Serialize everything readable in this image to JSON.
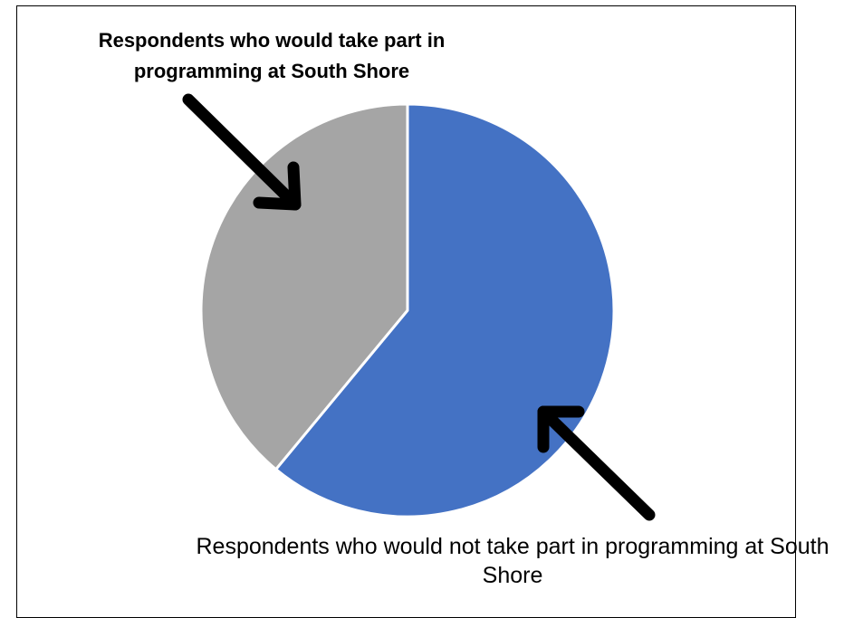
{
  "chart_data": {
    "type": "pie",
    "title": "",
    "slices": [
      {
        "label": "Respondents who would not take part in programming at South Shore",
        "value": 61,
        "color": "#4472C4"
      },
      {
        "label": "Respondents who would take part in programming at South Shore",
        "value": 39,
        "color": "#A5A5A5"
      }
    ],
    "start_angle_deg": 0,
    "direction": "clockwise",
    "annotations": [
      {
        "text": "Respondents who would take part in programming at South Shore",
        "style": "bold",
        "points_to": "Respondents who would take part in programming at South Shore"
      },
      {
        "text": "Respondents who would not take part in programming at South Shore",
        "style": "normal",
        "points_to": "Respondents who would not take part in programming at South Shore"
      }
    ]
  }
}
